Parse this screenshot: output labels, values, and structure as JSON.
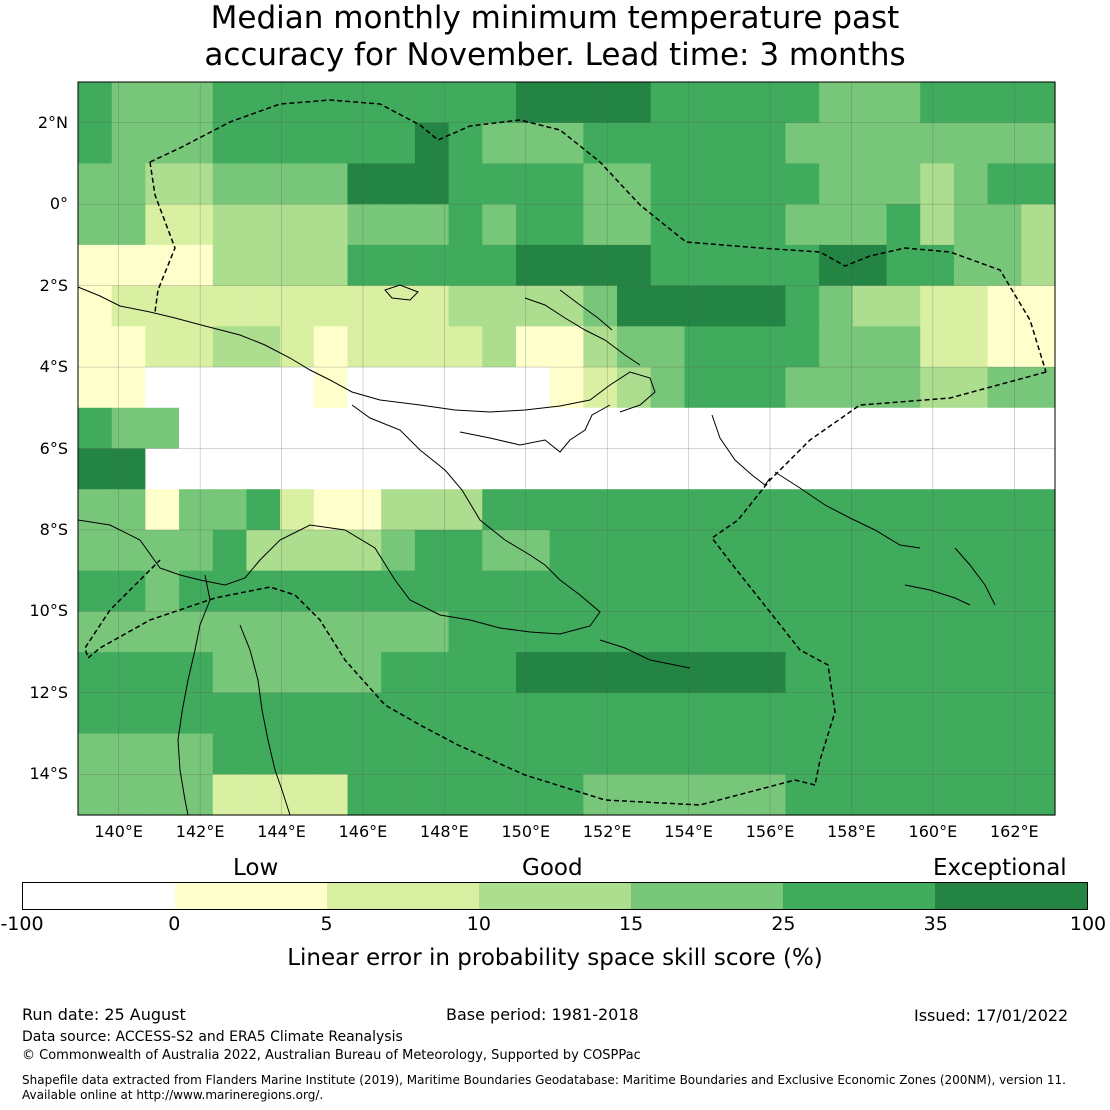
{
  "header": {
    "title_line1": "Median monthly minimum temperature past",
    "title_line2": "accuracy for November. Lead time: 3 months"
  },
  "map": {
    "lat_labels": [
      "2°N",
      "0°",
      "2°S",
      "4°S",
      "6°S",
      "8°S",
      "10°S",
      "12°S",
      "14°S"
    ],
    "lon_labels": [
      "140°E",
      "142°E",
      "144°E",
      "146°E",
      "148°E",
      "150°E",
      "152°E",
      "154°E",
      "156°E",
      "158°E",
      "160°E",
      "162°E"
    ],
    "lat_values": [
      2,
      0,
      -2,
      -4,
      -6,
      -8,
      -10,
      -12,
      -14
    ],
    "lon_values": [
      140,
      142,
      144,
      146,
      148,
      150,
      152,
      154,
      156,
      158,
      160,
      162
    ],
    "extent": {
      "lon_min": 139,
      "lon_max": 163,
      "lat_min": -15,
      "lat_max": 3
    },
    "grid_cols": 29,
    "grid_rows": 18,
    "cell_classes": [
      "54445555555556666555554445555",
      "54445555556544455555544444444",
      "44334444666555544555554443455",
      "44223333444545544555544453443",
      "11113333555556666555556655443",
      "12222222222333346666654332211",
      "11223321222231134455554442211",
      "11000001000000123455544443344",
      "54400000000000000000000000000",
      "66000000000000000000000000000",
      "44144521133355555555555555555",
      "44445333345544555555555555555",
      "55455555555555555555555555555",
      "44444444444555555555555555555",
      "55554444455556666666655555555",
      "55555555555555555555555555555",
      "44445555555555555555555555555",
      "44442222555555544444455555555"
    ],
    "class_colors": [
      "#ffffff",
      "#ffffcc",
      "#d9f0a3",
      "#addd8e",
      "#78c679",
      "#41ab5d",
      "#238443"
    ]
  },
  "legend": {
    "categories": [
      "Low",
      "Good",
      "Exceptional"
    ],
    "ticks": [
      "-100",
      "0",
      "5",
      "10",
      "15",
      "25",
      "35",
      "100"
    ],
    "colors": [
      "#ffffff",
      "#ffffcc",
      "#d9f0a3",
      "#addd8e",
      "#78c679",
      "#41ab5d",
      "#238443"
    ],
    "label": "Linear error in probability space skill score (%)"
  },
  "footer": {
    "run_date": "Run date: 25 August",
    "base_period": "Base period: 1981-2018",
    "issued": "Issued: 17/01/2022",
    "data_source": "Data source: ACCESS-S2 and ERA5 Climate Reanalysis",
    "copyright": "© Commonwealth of Australia 2022, Australian Bureau of Meteorology, Supported by COSPPac",
    "shapefile_line1": "Shapefile data extracted from Flanders Marine Institute (2019), Maritime Boundaries Geodatabase: Maritime Boundaries and Exclusive Economic Zones (200NM), version 11.",
    "shapefile_line2": "Available online at http://www.marineregions.org/."
  }
}
